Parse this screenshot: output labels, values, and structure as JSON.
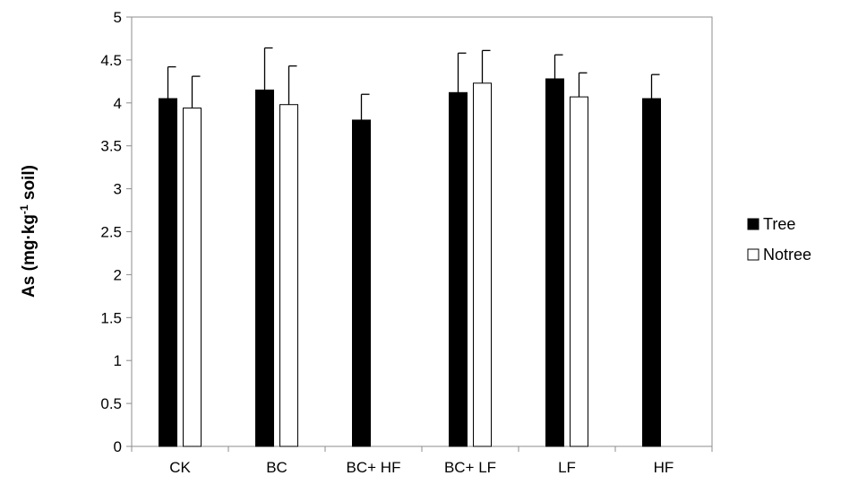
{
  "chart_data": {
    "type": "bar",
    "categories": [
      "CK",
      "BC",
      "BC+ HF",
      "BC+ LF",
      "LF",
      "HF"
    ],
    "series": [
      {
        "name": "Tree",
        "color": "#000000",
        "values": [
          4.05,
          4.15,
          3.8,
          4.12,
          4.28,
          4.05
        ],
        "errors": [
          0.37,
          0.49,
          0.3,
          0.46,
          0.28,
          0.28
        ]
      },
      {
        "name": "Notree",
        "color": "#ffffff",
        "values": [
          3.94,
          3.98,
          null,
          4.23,
          4.07,
          null
        ],
        "errors": [
          0.37,
          0.45,
          null,
          0.38,
          0.28,
          null
        ]
      }
    ],
    "ylabel_main": "As (mg·kg",
    "ylabel_sup": "-1",
    "ylabel_end": " soil)",
    "ylim": [
      0,
      5
    ],
    "yticks": [
      "0",
      "0.5",
      "1",
      "1.5",
      "2",
      "2.5",
      "3",
      "3.5",
      "4",
      "4.5",
      "5"
    ],
    "legend_position": "right",
    "grid": false
  }
}
